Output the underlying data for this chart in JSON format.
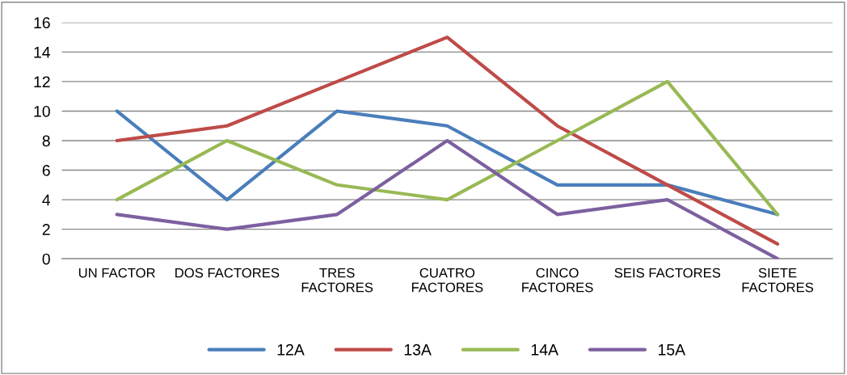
{
  "chart_data": {
    "type": "line",
    "categories": [
      "UN FACTOR",
      "DOS FACTORES",
      "TRES\nFACTORES",
      "CUATRO\nFACTORES",
      "CINCO\nFACTORES",
      "SEIS FACTORES",
      "SIETE\nFACTORES"
    ],
    "series": [
      {
        "name": "12A",
        "color": "#4a7ebb",
        "values": [
          10,
          4,
          10,
          9,
          5,
          5,
          3
        ]
      },
      {
        "name": "13A",
        "color": "#be4b48",
        "values": [
          8,
          9,
          12,
          15,
          9,
          5,
          1
        ]
      },
      {
        "name": "14A",
        "color": "#98b954",
        "values": [
          4,
          8,
          5,
          4,
          8,
          12,
          3
        ]
      },
      {
        "name": "15A",
        "color": "#7d60a0",
        "values": [
          3,
          2,
          3,
          8,
          3,
          4,
          0
        ]
      }
    ],
    "ylim": [
      0,
      16
    ],
    "yticks": [
      0,
      2,
      4,
      6,
      8,
      10,
      12,
      14,
      16
    ],
    "grid": "y",
    "legend": "bottom",
    "marker": "none",
    "line_style": "solid"
  }
}
